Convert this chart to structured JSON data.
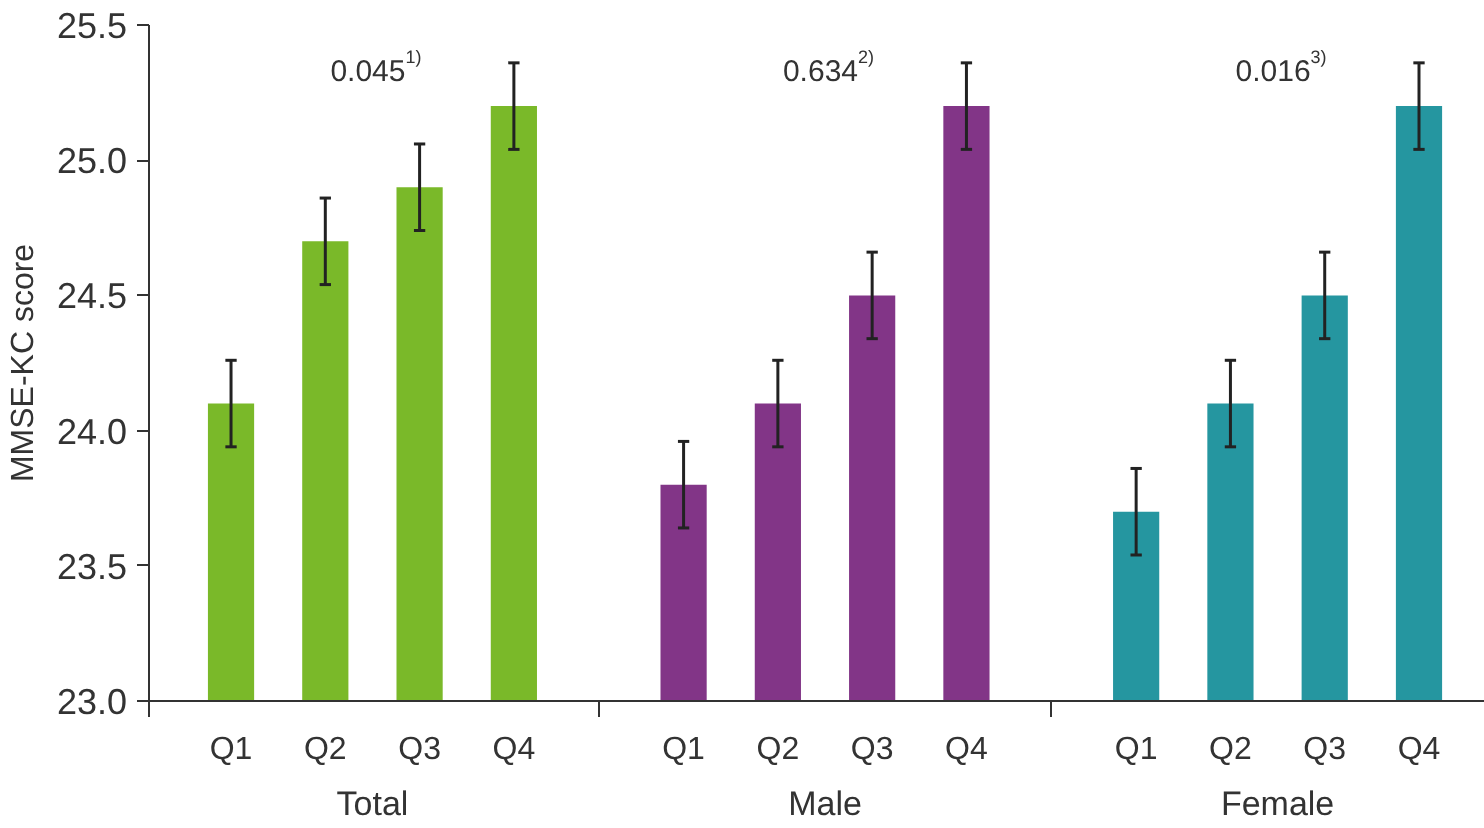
{
  "chart_data": {
    "type": "bar",
    "ylabel": "MMSE-KC score",
    "categories": [
      "Q1",
      "Q2",
      "Q3",
      "Q4",
      "Q1",
      "Q2",
      "Q3",
      "Q4",
      "Q1",
      "Q2",
      "Q3",
      "Q4"
    ],
    "series": [
      {
        "name": "Total",
        "color": "#7ab929",
        "values": [
          24.1,
          24.7,
          24.9,
          25.2,
          null,
          null,
          null,
          null,
          null,
          null,
          null,
          null
        ],
        "errors": [
          0.16,
          0.16,
          0.16,
          0.16,
          null,
          null,
          null,
          null,
          null,
          null,
          null,
          null
        ]
      },
      {
        "name": "Male",
        "color": "#823587",
        "values": [
          null,
          null,
          null,
          null,
          23.8,
          24.1,
          24.5,
          25.2,
          null,
          null,
          null,
          null
        ],
        "errors": [
          null,
          null,
          null,
          null,
          0.16,
          0.16,
          0.16,
          0.16,
          null,
          null,
          null,
          null
        ]
      },
      {
        "name": "Female",
        "color": "#2596a0",
        "values": [
          null,
          null,
          null,
          null,
          null,
          null,
          null,
          null,
          23.7,
          24.1,
          24.5,
          25.2
        ],
        "errors": [
          null,
          null,
          null,
          null,
          null,
          null,
          null,
          null,
          0.16,
          0.16,
          0.16,
          0.16
        ]
      }
    ],
    "ylim": [
      23,
      25.5
    ],
    "yticks": [
      {
        "value": 23,
        "label": "23.0"
      },
      23.5,
      {
        "value": 24,
        "label": "24.0"
      },
      24.5,
      {
        "value": 25,
        "label": "25.0"
      },
      25.5
    ],
    "annotations": [
      "0.045$^{1)}$",
      "0.634$^{2)}$",
      "0.016$^{3)}$"
    ]
  }
}
